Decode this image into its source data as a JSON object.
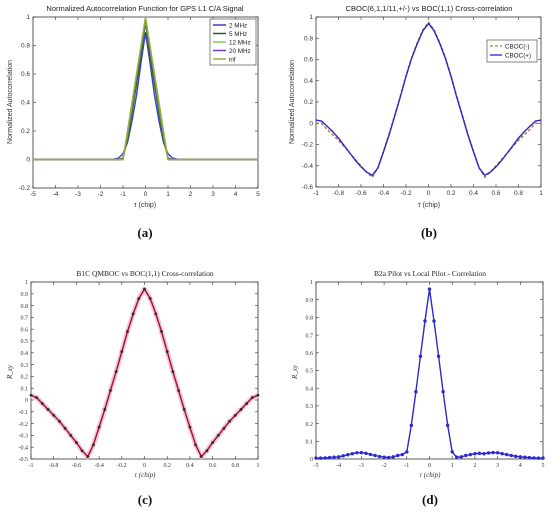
{
  "panels": [
    {
      "caption": "(a)",
      "title": "Normalized Autocorrelation Function for GPS L1 C/A Signal",
      "xlabel": "τ (chip)",
      "ylabel": "Normalized Autocorrelation",
      "xlim": [
        -5,
        5
      ],
      "ylim": [
        -0.2,
        1
      ],
      "xticks": [
        "-5",
        "-4",
        "-3",
        "-2",
        "-1",
        "0",
        "1",
        "2",
        "3",
        "4",
        "5"
      ],
      "yticks": [
        "-0.2",
        "0",
        "0.2",
        "0.4",
        "0.6",
        "0.8",
        "1"
      ],
      "legend": [
        "2 MHz",
        "5 MHz",
        "12 MHz",
        "20 MHz",
        "inf"
      ]
    },
    {
      "caption": "(b)",
      "title": "CBOC(6,1,1/11,+/-) vs BOC(1,1) Cross-correlation",
      "xlabel": "τ (chip)",
      "ylabel": "Normalized Autocorrelation",
      "xlim": [
        -1,
        1
      ],
      "ylim": [
        -0.6,
        1
      ],
      "xticks": [
        "-1",
        "-0.8",
        "-0.6",
        "-0.4",
        "-0.2",
        "0",
        "0.2",
        "0.4",
        "0.6",
        "0.8",
        "1"
      ],
      "yticks": [
        "-0.6",
        "-0.4",
        "-0.2",
        "0",
        "0.2",
        "0.4",
        "0.6",
        "0.8",
        "1"
      ],
      "legend": [
        "CBOC(-)",
        "CBOC(+)"
      ]
    },
    {
      "caption": "(c)",
      "title": "B1C QMBOC vs BOC(1,1) Cross-correlation",
      "xlabel": "τ (chip)",
      "ylabel": "R_xy",
      "xlim": [
        -1,
        1
      ],
      "ylim": [
        -0.5,
        1
      ],
      "xticks": [
        "-1",
        "-0.8",
        "-0.6",
        "-0.4",
        "-0.2",
        "0",
        "0.2",
        "0.4",
        "0.6",
        "0.8",
        "1"
      ],
      "yticks": [
        "-0.5",
        "-0.4",
        "-0.3",
        "-0.2",
        "-0.1",
        "0",
        "0.1",
        "0.2",
        "0.3",
        "0.4",
        "0.5",
        "0.6",
        "0.7",
        "0.8",
        "0.9",
        "1"
      ]
    },
    {
      "caption": "(d)",
      "title": "B2a Pilot vs Local Pilot - Correlation",
      "xlabel": "τ (chip)",
      "ylabel": "R_xy",
      "xlim": [
        -5,
        5
      ],
      "ylim": [
        0,
        1
      ],
      "xticks": [
        "-5",
        "-4",
        "-3",
        "-2",
        "-1",
        "0",
        "1",
        "2",
        "3",
        "4",
        "5"
      ],
      "yticks": [
        "0",
        "0.1",
        "0.2",
        "0.3",
        "0.4",
        "0.5",
        "0.6",
        "0.7",
        "0.8",
        "0.9",
        "1"
      ]
    }
  ],
  "chart_data": [
    {
      "type": "line",
      "title": "Normalized Autocorrelation Function for GPS L1 C/A Signal",
      "xlabel": "τ (chip)",
      "ylabel": "Normalized Autocorrelation",
      "xlim": [
        -5,
        5
      ],
      "ylim": [
        -0.2,
        1
      ],
      "grid": false,
      "legend_position": "top-right",
      "x": [
        -5,
        -1.5,
        -1.2,
        -1,
        -0.8,
        -0.6,
        -0.4,
        -0.2,
        0,
        0.2,
        0.4,
        0.6,
        0.8,
        1,
        1.2,
        1.5,
        5
      ],
      "series": [
        {
          "name": "2 MHz",
          "color": "#3b3bc8",
          "values": [
            0,
            0,
            0.01,
            0.04,
            0.12,
            0.27,
            0.45,
            0.68,
            0.89,
            0.68,
            0.45,
            0.27,
            0.12,
            0.04,
            0.01,
            0,
            0
          ]
        },
        {
          "name": "5 MHz",
          "color": "#2e5e1a",
          "values": [
            0,
            0,
            0,
            0.01,
            0.14,
            0.33,
            0.53,
            0.74,
            0.96,
            0.74,
            0.53,
            0.33,
            0.14,
            0.01,
            0,
            0,
            0
          ]
        },
        {
          "name": "12 MHz",
          "color": "#7cd44a",
          "values": [
            0,
            0,
            0,
            0,
            0.17,
            0.37,
            0.58,
            0.78,
            0.98,
            0.78,
            0.58,
            0.37,
            0.17,
            0,
            0,
            0,
            0
          ]
        },
        {
          "name": "20 MHz",
          "color": "#7b3bbd",
          "values": [
            0,
            0,
            0,
            0,
            0.19,
            0.39,
            0.59,
            0.79,
            0.99,
            0.79,
            0.59,
            0.39,
            0.19,
            0,
            0,
            0,
            0
          ]
        },
        {
          "name": "inf",
          "color": "#93b23a",
          "values": [
            0,
            0,
            0,
            0,
            0.2,
            0.4,
            0.6,
            0.8,
            1.0,
            0.8,
            0.6,
            0.4,
            0.2,
            0,
            0,
            0,
            0
          ]
        }
      ]
    },
    {
      "type": "line",
      "title": "CBOC(6,1,1/11,+/-) vs BOC(1,1) Cross-correlation",
      "xlabel": "τ (chip)",
      "ylabel": "Normalized Autocorrelation",
      "xlim": [
        -1,
        1
      ],
      "ylim": [
        -0.6,
        1
      ],
      "grid": false,
      "legend_position": "top-right",
      "x": [
        -1,
        -0.95,
        -0.9,
        -0.85,
        -0.8,
        -0.75,
        -0.7,
        -0.65,
        -0.6,
        -0.55,
        -0.5,
        -0.45,
        -0.4,
        -0.35,
        -0.3,
        -0.25,
        -0.2,
        -0.15,
        -0.1,
        -0.05,
        0,
        0.05,
        0.1,
        0.15,
        0.2,
        0.25,
        0.3,
        0.35,
        0.4,
        0.45,
        0.5,
        0.55,
        0.6,
        0.65,
        0.7,
        0.75,
        0.8,
        0.85,
        0.9,
        0.95,
        1
      ],
      "series": [
        {
          "name": "CBOC(-)",
          "color": "#c0703a",
          "values": [
            0.0,
            0.0,
            -0.06,
            -0.11,
            -0.16,
            -0.22,
            -0.28,
            -0.34,
            -0.4,
            -0.46,
            -0.51,
            -0.42,
            -0.26,
            -0.1,
            0.08,
            0.26,
            0.45,
            0.62,
            0.76,
            0.88,
            0.95,
            0.88,
            0.76,
            0.62,
            0.45,
            0.26,
            0.08,
            -0.1,
            -0.26,
            -0.42,
            -0.51,
            -0.46,
            -0.4,
            -0.34,
            -0.28,
            -0.22,
            -0.16,
            -0.11,
            -0.06,
            0.0,
            0.0
          ]
        },
        {
          "name": "CBOC(+)",
          "color": "#2828c8",
          "values": [
            0.03,
            0.02,
            -0.03,
            -0.08,
            -0.14,
            -0.21,
            -0.28,
            -0.35,
            -0.41,
            -0.46,
            -0.49,
            -0.42,
            -0.27,
            -0.11,
            0.07,
            0.25,
            0.44,
            0.61,
            0.75,
            0.87,
            0.94,
            0.87,
            0.75,
            0.61,
            0.44,
            0.25,
            0.07,
            -0.11,
            -0.27,
            -0.42,
            -0.49,
            -0.46,
            -0.41,
            -0.35,
            -0.28,
            -0.21,
            -0.14,
            -0.08,
            -0.03,
            0.02,
            0.03
          ]
        }
      ]
    },
    {
      "type": "line",
      "title": "B1C QMBOC vs BOC(1,1) Cross-correlation",
      "xlabel": "τ (chip)",
      "ylabel": "R_xy",
      "xlim": [
        -1,
        1
      ],
      "ylim": [
        -0.5,
        1
      ],
      "grid": false,
      "x": [
        -1,
        -0.95,
        -0.9,
        -0.85,
        -0.8,
        -0.75,
        -0.7,
        -0.65,
        -0.6,
        -0.55,
        -0.5,
        -0.45,
        -0.4,
        -0.35,
        -0.3,
        -0.25,
        -0.2,
        -0.15,
        -0.1,
        -0.05,
        0,
        0.05,
        0.1,
        0.15,
        0.2,
        0.25,
        0.3,
        0.35,
        0.4,
        0.45,
        0.5,
        0.55,
        0.6,
        0.65,
        0.7,
        0.75,
        0.8,
        0.85,
        0.9,
        0.95,
        1
      ],
      "series": [
        {
          "name": "",
          "color": "#a0101a",
          "values": [
            0.04,
            0.02,
            -0.03,
            -0.08,
            -0.13,
            -0.18,
            -0.24,
            -0.3,
            -0.36,
            -0.43,
            -0.48,
            -0.38,
            -0.23,
            -0.08,
            0.08,
            0.24,
            0.41,
            0.58,
            0.73,
            0.86,
            0.94,
            0.86,
            0.73,
            0.58,
            0.41,
            0.24,
            0.08,
            -0.08,
            -0.23,
            -0.38,
            -0.48,
            -0.43,
            -0.36,
            -0.3,
            -0.24,
            -0.18,
            -0.13,
            -0.08,
            -0.03,
            0.02,
            0.04
          ]
        }
      ]
    },
    {
      "type": "line",
      "title": "B2a Pilot vs Local Pilot - Correlation",
      "xlabel": "τ (chip)",
      "ylabel": "R_xy",
      "xlim": [
        -5,
        5
      ],
      "ylim": [
        0,
        1
      ],
      "grid": false,
      "x": [
        -5,
        -4.8,
        -4.6,
        -4.4,
        -4.2,
        -4,
        -3.8,
        -3.6,
        -3.4,
        -3.2,
        -3,
        -2.8,
        -2.6,
        -2.4,
        -2.2,
        -2,
        -1.8,
        -1.6,
        -1.4,
        -1.2,
        -1,
        -0.8,
        -0.6,
        -0.4,
        -0.2,
        0,
        0.2,
        0.4,
        0.6,
        0.8,
        1,
        1.2,
        1.4,
        1.6,
        1.8,
        2,
        2.2,
        2.4,
        2.6,
        2.8,
        3,
        3.2,
        3.4,
        3.6,
        3.8,
        4,
        4.2,
        4.4,
        4.6,
        4.8,
        5
      ],
      "series": [
        {
          "name": "",
          "color": "#2a2ad0",
          "values": [
            0.005,
            0.005,
            0.006,
            0.008,
            0.01,
            0.012,
            0.018,
            0.024,
            0.03,
            0.035,
            0.036,
            0.032,
            0.026,
            0.02,
            0.014,
            0.01,
            0.008,
            0.012,
            0.02,
            0.025,
            0.04,
            0.19,
            0.38,
            0.58,
            0.78,
            0.96,
            0.78,
            0.58,
            0.38,
            0.19,
            0.04,
            0.01,
            0.012,
            0.02,
            0.025,
            0.03,
            0.032,
            0.03,
            0.034,
            0.036,
            0.035,
            0.03,
            0.025,
            0.02,
            0.015,
            0.012,
            0.01,
            0.008,
            0.006,
            0.005,
            0.005
          ]
        }
      ]
    }
  ]
}
